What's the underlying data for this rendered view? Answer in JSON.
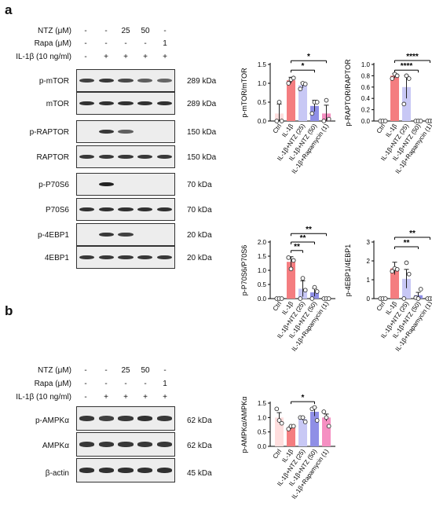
{
  "panels": {
    "a": {
      "letter": "a",
      "conditions": [
        {
          "label": "NTZ (μM)",
          "marks": [
            "-",
            "-",
            "25",
            "50",
            "-"
          ]
        },
        {
          "label": "Rapa (μM)",
          "marks": [
            "-",
            "-",
            "-",
            "-",
            "1"
          ]
        },
        {
          "label": "IL-1β (10 ng/ml)",
          "marks": [
            "-",
            "+",
            "+",
            "+",
            "+"
          ]
        }
      ],
      "blots": [
        {
          "name": "p-mTOR",
          "kda": "289 kDa",
          "intensity": [
            0.8,
            0.85,
            0.75,
            0.6,
            0.55
          ]
        },
        {
          "name": "mTOR",
          "kda": "289 kDa",
          "intensity": [
            0.9,
            0.9,
            0.9,
            0.9,
            0.9
          ]
        },
        {
          "name": "p-RAPTOR",
          "kda": "150 kDa",
          "intensity": [
            0,
            0.85,
            0.6,
            0,
            0
          ]
        },
        {
          "name": "RAPTOR",
          "kda": "150 kDa",
          "intensity": [
            0.85,
            0.85,
            0.85,
            0.85,
            0.85
          ]
        },
        {
          "name": "p-P70S6",
          "kda": "70 kDa",
          "intensity": [
            0,
            1,
            0,
            0,
            0
          ]
        },
        {
          "name": "P70S6",
          "kda": "70 kDa",
          "intensity": [
            0.9,
            0.9,
            0.9,
            0.9,
            0.9
          ]
        },
        {
          "name": "p-4EBP1",
          "kda": "20 kDa",
          "intensity": [
            0,
            0.85,
            0.8,
            0,
            0
          ]
        },
        {
          "name": "4EBP1",
          "kda": "20 kDa",
          "intensity": [
            0.85,
            0.85,
            0.85,
            0.85,
            0.85
          ]
        }
      ]
    },
    "b": {
      "letter": "b",
      "conditions": [
        {
          "label": "NTZ (μM)",
          "marks": [
            "-",
            "-",
            "25",
            "50",
            "-"
          ]
        },
        {
          "label": "Rapa (μM)",
          "marks": [
            "-",
            "-",
            "-",
            "-",
            "1"
          ]
        },
        {
          "label": "IL-1β (10 ng/ml)",
          "marks": [
            "-",
            "+",
            "+",
            "+",
            "+"
          ]
        }
      ],
      "blots": [
        {
          "name": "p-AMPKα",
          "kda": "62 kDa",
          "intensity": [
            0.85,
            0.8,
            0.85,
            0.9,
            0.85
          ]
        },
        {
          "name": "AMPKα",
          "kda": "62 kDa",
          "intensity": [
            0.85,
            0.85,
            0.85,
            0.85,
            0.85
          ]
        },
        {
          "name": "β-actin",
          "kda": "45 kDa",
          "intensity": [
            0.9,
            0.9,
            0.9,
            0.9,
            0.9
          ]
        }
      ]
    }
  },
  "colors": {
    "ctrl": "#ffdede",
    "il1b": "#f47d80",
    "ntz25": "#c8c8f5",
    "ntz50": "#8f8fe6",
    "rapa": "#f58fc2",
    "sig_line": "#000000",
    "point_fill": "#ffffff"
  },
  "chart_data": [
    {
      "type": "bar",
      "ylabel": "p-mTOR/mTOR",
      "categories": [
        "Ctrl",
        "IL-1β",
        "IL-1β+NTZ (25)",
        "IL-1β+NTZ (50)",
        "IL-1β+Rapamycin (1)"
      ],
      "values": [
        0.2,
        1.08,
        0.95,
        0.4,
        0.2
      ],
      "errors": [
        0.25,
        0.08,
        0.07,
        0.15,
        0.22
      ],
      "points": [
        [
          0.0,
          0.5,
          0.0
        ],
        [
          1.0,
          1.1,
          1.14
        ],
        [
          0.85,
          1.0,
          0.98
        ],
        [
          0.2,
          0.5,
          0.5
        ],
        [
          0.0,
          0.55,
          0.05
        ]
      ],
      "ylim": [
        0,
        1.5
      ],
      "yticks": [
        "0.0",
        "0.5",
        "1.0",
        "1.5"
      ],
      "significance": [
        {
          "from": 1,
          "to": 4,
          "label": "*",
          "level": 1.6
        },
        {
          "from": 1,
          "to": 3,
          "label": "*",
          "level": 1.35
        }
      ]
    },
    {
      "type": "bar",
      "ylabel": "p-RAPTOR/RAPTOR",
      "categories": [
        "Ctrl",
        "IL-1β",
        "IL-1β+NTZ (25)",
        "IL-1β+NTZ (50)",
        "IL-1β+Rapamycin (1)"
      ],
      "values": [
        0.0,
        0.8,
        0.6,
        0.0,
        0.0
      ],
      "errors": [
        0.01,
        0.04,
        0.2,
        0.01,
        0.01
      ],
      "points": [
        [
          0.0,
          0.0,
          0.0
        ],
        [
          0.75,
          0.83,
          0.8
        ],
        [
          0.3,
          0.8,
          0.75
        ],
        [
          0.0,
          0.0,
          0.0
        ],
        [
          0.0,
          0.0,
          0.0
        ]
      ],
      "ylim": [
        0,
        1.0
      ],
      "yticks": [
        "0.0",
        "0.2",
        "0.4",
        "0.6",
        "0.8",
        "1.0"
      ],
      "significance": [
        {
          "from": 1,
          "to": 4,
          "label": "****",
          "level": 1.07
        },
        {
          "from": 1,
          "to": 3,
          "label": "****",
          "level": 0.9
        }
      ]
    },
    {
      "type": "bar",
      "ylabel": "p-P70S6/P70S6",
      "categories": [
        "Ctrl",
        "IL-1β",
        "IL-1β+NTZ (25)",
        "IL-1β+NTZ (50)",
        "IL-1β+Rapamycin (1)"
      ],
      "values": [
        0.0,
        1.3,
        0.35,
        0.22,
        0.0
      ],
      "errors": [
        0.01,
        0.18,
        0.28,
        0.14,
        0.01
      ],
      "points": [
        [
          0.0,
          0.0,
          0.0
        ],
        [
          1.45,
          1.05,
          1.35
        ],
        [
          0.0,
          0.72,
          0.3
        ],
        [
          0.0,
          0.4,
          0.25
        ],
        [
          0.0,
          0.0,
          0.0
        ]
      ],
      "ylim": [
        0,
        2.0
      ],
      "yticks": [
        "0.0",
        "0.5",
        "1.0",
        "1.5",
        "2.0"
      ],
      "significance": [
        {
          "from": 1,
          "to": 4,
          "label": "**",
          "level": 2.3
        },
        {
          "from": 1,
          "to": 3,
          "label": "**",
          "level": 2.0
        },
        {
          "from": 1,
          "to": 2,
          "label": "**",
          "level": 1.7
        }
      ]
    },
    {
      "type": "bar",
      "ylabel": "p-4EBP1/4EBP1",
      "categories": [
        "Ctrl",
        "IL-1β",
        "IL-1β+NTZ (25)",
        "IL-1β+NTZ (50)",
        "IL-1β+Rapamycin (1)"
      ],
      "values": [
        0.0,
        1.6,
        1.05,
        0.18,
        0.0
      ],
      "errors": [
        0.01,
        0.33,
        0.5,
        0.15,
        0.01
      ],
      "points": [
        [
          0.0,
          0.0,
          0.0
        ],
        [
          1.45,
          1.6,
          1.55
        ],
        [
          0.0,
          1.9,
          1.3
        ],
        [
          0.05,
          0.0,
          0.5
        ],
        [
          0.0,
          0.0,
          0.0
        ]
      ],
      "ylim": [
        0,
        3.0
      ],
      "yticks": [
        "0",
        "1",
        "2",
        "3"
      ],
      "significance": [
        {
          "from": 1,
          "to": 4,
          "label": "**",
          "level": 3.25
        },
        {
          "from": 1,
          "to": 3,
          "label": "**",
          "level": 2.75
        }
      ]
    },
    {
      "type": "bar",
      "ylabel": "p-AMPKα/AMPKα",
      "categories": [
        "Ctrl",
        "IL-1β",
        "IL-1β+NTZ (25)",
        "IL-1β+NTZ (50)",
        "IL-1β+Rapamycin (1)"
      ],
      "values": [
        1.0,
        0.65,
        0.95,
        1.2,
        1.0
      ],
      "errors": [
        0.17,
        0.05,
        0.05,
        0.15,
        0.12
      ],
      "points": [
        [
          1.3,
          0.9,
          0.8
        ],
        [
          0.6,
          0.7,
          0.7
        ],
        [
          1.0,
          1.0,
          0.85
        ],
        [
          1.3,
          1.35,
          0.9
        ],
        [
          1.2,
          1.0,
          0.7
        ]
      ],
      "ylim": [
        0,
        1.5
      ],
      "yticks": [
        "0.0",
        "0.5",
        "1.0",
        "1.5"
      ],
      "significance": [
        {
          "from": 1,
          "to": 3,
          "label": "*",
          "level": 1.55
        }
      ]
    }
  ]
}
